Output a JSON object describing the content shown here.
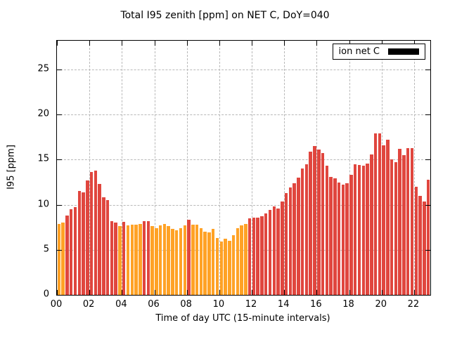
{
  "chart_data": {
    "type": "bar",
    "title": "Total I95 zenith [ppm] on NET C, DoY=040",
    "xlabel": "Time of day UTC (15-minute intervals)",
    "ylabel": "I95 [ppm]",
    "legend_label": "ion net C",
    "legend_position": "top-right-inside",
    "legend_swatch_color": "#000000",
    "grid": "dashed",
    "interval_minutes": 15,
    "start_time": "00:00",
    "x_hours_max": 23.0,
    "ylim": [
      0,
      28.2
    ],
    "y_ticks": [
      0,
      5,
      10,
      15,
      20,
      25
    ],
    "x_tick_hours": [
      0,
      2,
      4,
      6,
      8,
      10,
      12,
      14,
      16,
      18,
      20,
      22
    ],
    "x_tick_labels": [
      "00",
      "02",
      "04",
      "06",
      "08",
      "10",
      "12",
      "14",
      "16",
      "18",
      "20",
      "22"
    ],
    "values": [
      7.9,
      8.0,
      8.8,
      9.5,
      9.7,
      11.5,
      11.4,
      12.7,
      13.6,
      13.8,
      12.3,
      10.8,
      10.5,
      8.2,
      8.0,
      7.6,
      8.1,
      7.7,
      7.8,
      7.8,
      7.9,
      8.2,
      8.2,
      7.6,
      7.4,
      7.7,
      7.9,
      7.6,
      7.3,
      7.2,
      7.4,
      7.7,
      8.3,
      7.8,
      7.8,
      7.4,
      7.0,
      6.9,
      7.3,
      6.3,
      5.9,
      6.2,
      6.0,
      6.6,
      7.4,
      7.7,
      7.9,
      8.5,
      8.6,
      8.6,
      8.7,
      9.0,
      9.4,
      9.8,
      9.6,
      10.4,
      11.3,
      11.9,
      12.4,
      13.0,
      14.0,
      14.5,
      15.9,
      16.5,
      16.1,
      15.7,
      14.3,
      13.1,
      12.9,
      12.5,
      12.2,
      12.4,
      13.3,
      14.5,
      14.4,
      14.3,
      14.6,
      15.6,
      17.9,
      17.9,
      16.6,
      17.2,
      15.0,
      14.7,
      16.2,
      15.5,
      16.3,
      16.3,
      12.0,
      11.0,
      10.4,
      12.8
    ],
    "colors": "oorrrrrrrrrrrrroroooorroooooooooroooooooooooooorrrrrrrrrrrrrrrrrrrrrrrrrrrrrrrrrrrrrrrrrrrr",
    "palette": {
      "o": "#ffa226",
      "r": "#e0463e",
      "grid": "#b8b8b8",
      "axis": "#000000"
    }
  }
}
